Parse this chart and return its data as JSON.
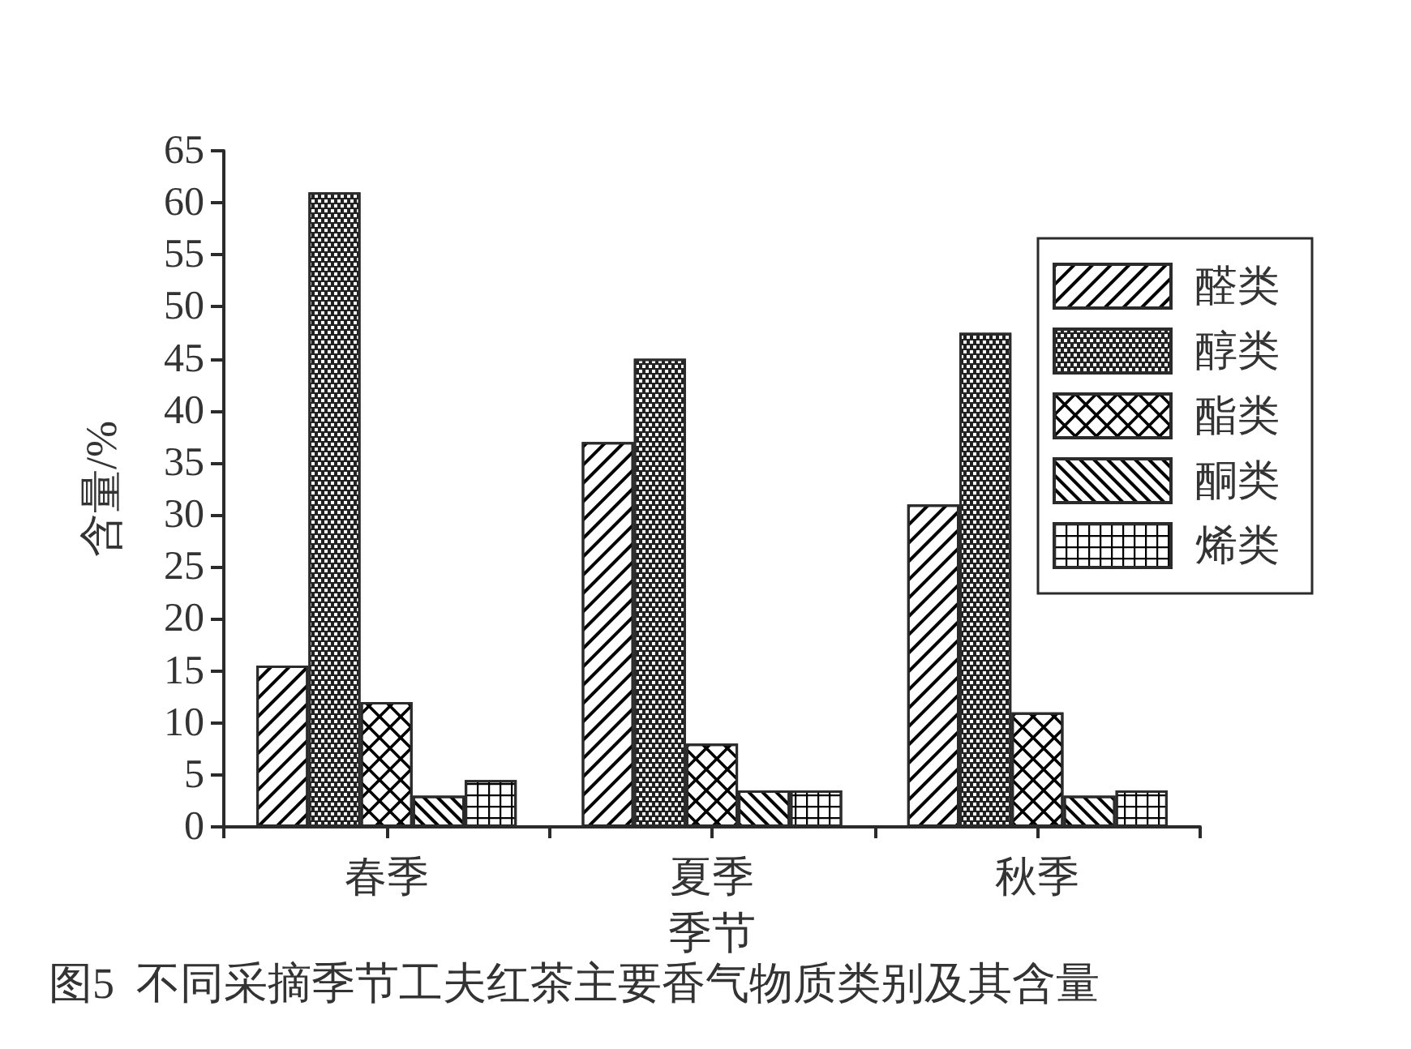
{
  "chart_data": {
    "type": "bar",
    "categories": [
      "春季",
      "夏季",
      "秋季"
    ],
    "xlabel": "季节",
    "ylabel": "含量/%",
    "annotations": [
      "图5  不同采摘季节工夫红茶主要香气物质类别及其含量"
    ],
    "series": [
      {
        "name": "醛类",
        "color": "#ffffff",
        "values": [
          15.5,
          37,
          31
        ]
      },
      {
        "name": "醇类",
        "color": "#222222",
        "values": [
          61,
          45,
          47.5
        ]
      },
      {
        "name": "酯类",
        "color": "#ffffff",
        "values": [
          12,
          8,
          11
        ]
      },
      {
        "name": "酮类",
        "color": "#ffffff",
        "values": [
          3,
          3.5,
          3
        ]
      },
      {
        "name": "烯类",
        "color": "#ffffff",
        "values": [
          4.5,
          3.5,
          3.5
        ]
      }
    ],
    "ylim": [
      0,
      65
    ],
    "yticks": [
      0,
      5,
      10,
      15,
      20,
      25,
      30,
      35,
      40,
      45,
      50,
      55,
      60,
      65
    ],
    "grid": false,
    "legend": "top right"
  }
}
